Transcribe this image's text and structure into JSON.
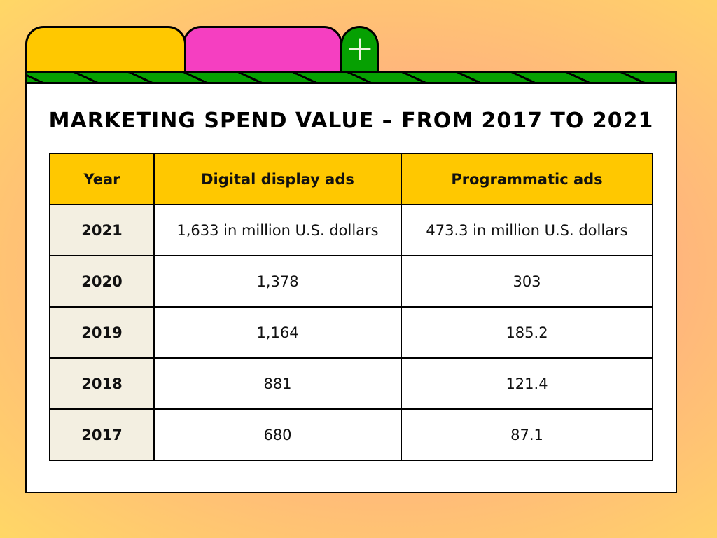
{
  "title": "MARKETING SPEND VALUE – FROM 2017 TO 2021",
  "colors": {
    "tab1": "#ffc800",
    "tab2": "#f53fc1",
    "tab3": "#06a002",
    "header": "#ffc800",
    "year_col": "#f3efe1"
  },
  "icons": {
    "add_tab": "plus-icon"
  },
  "chart_data": {
    "type": "table",
    "title": "MARKETING SPEND VALUE – FROM 2017 TO 2021",
    "columns": [
      "Year",
      "Digital display ads",
      "Programmatic ads"
    ],
    "rows": [
      [
        "2021",
        "1,633 in million U.S. dollars",
        "473.3 in million U.S. dollars"
      ],
      [
        "2020",
        "1,378",
        "303"
      ],
      [
        "2019",
        "1,164",
        "185.2"
      ],
      [
        "2018",
        "881",
        "121.4"
      ],
      [
        "2017",
        "680",
        "87.1"
      ]
    ]
  }
}
